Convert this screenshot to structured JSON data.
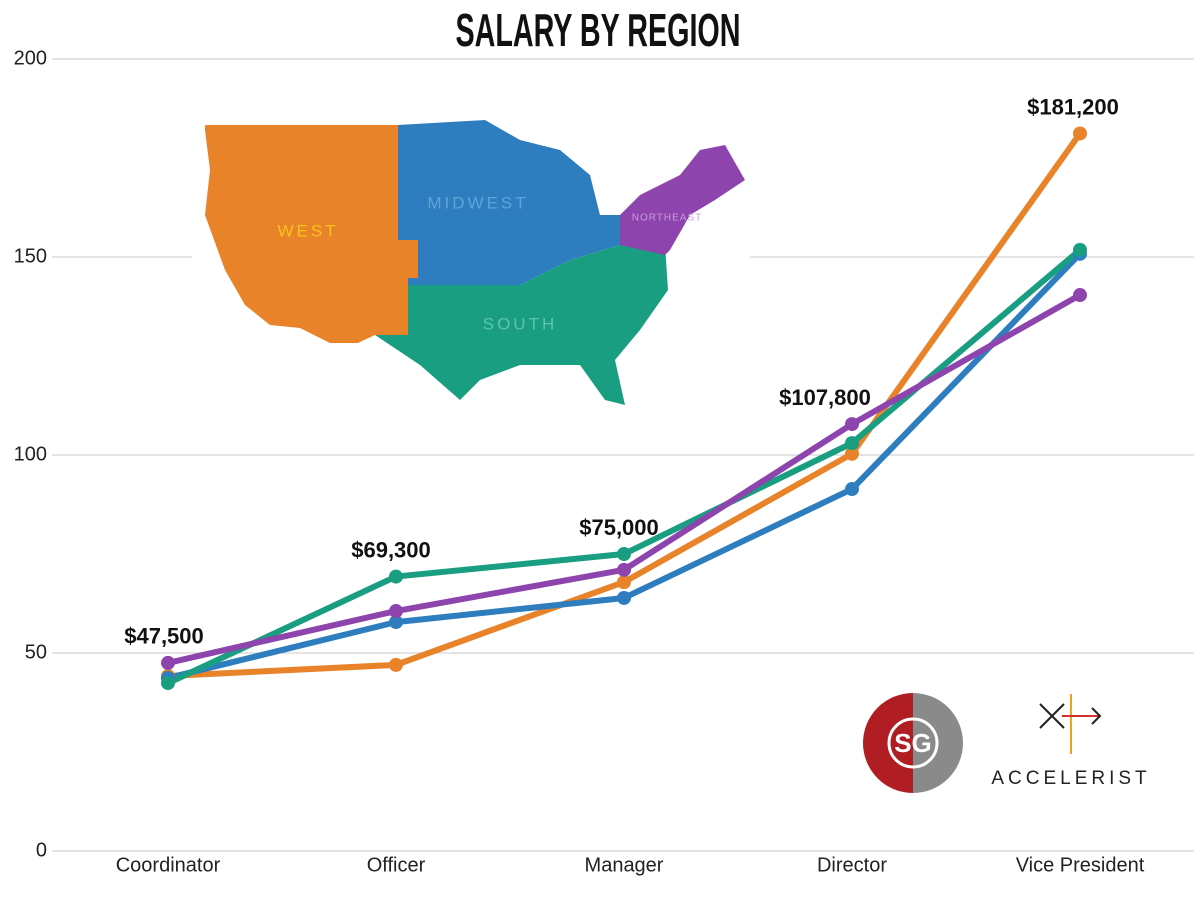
{
  "chart_data": {
    "type": "line",
    "title": "SALARY BY REGION",
    "categories": [
      "Coordinator",
      "Officer",
      "Manager",
      "Director",
      "Vice President"
    ],
    "ylim": [
      0,
      200
    ],
    "yticks": [
      0,
      50,
      100,
      150,
      200
    ],
    "grid": true,
    "series": [
      {
        "name": "WEST",
        "color": "#e8832a",
        "values": [
          44.2,
          47.0,
          67.9,
          100.3,
          181.2
        ],
        "value_labels": [
          null,
          null,
          null,
          null,
          "$181,200"
        ]
      },
      {
        "name": "MIDWEST",
        "color": "#2e7ebf",
        "values": [
          43.7,
          57.8,
          63.9,
          91.4,
          150.8
        ],
        "value_labels": [
          null,
          null,
          null,
          null,
          null
        ]
      },
      {
        "name": "SOUTH",
        "color": "#1a9e82",
        "values": [
          42.4,
          69.3,
          75.0,
          103.0,
          151.8
        ],
        "value_labels": [
          null,
          "$69,300",
          "$75,000",
          null,
          null
        ]
      },
      {
        "name": "NORTHEAST",
        "color": "#8e44ad",
        "values": [
          47.5,
          60.6,
          71.0,
          107.8,
          140.4
        ],
        "value_labels": [
          "$47,500",
          null,
          null,
          "$107,800",
          null
        ]
      }
    ]
  },
  "logos": [
    "SG",
    "ACCELERIST"
  ]
}
